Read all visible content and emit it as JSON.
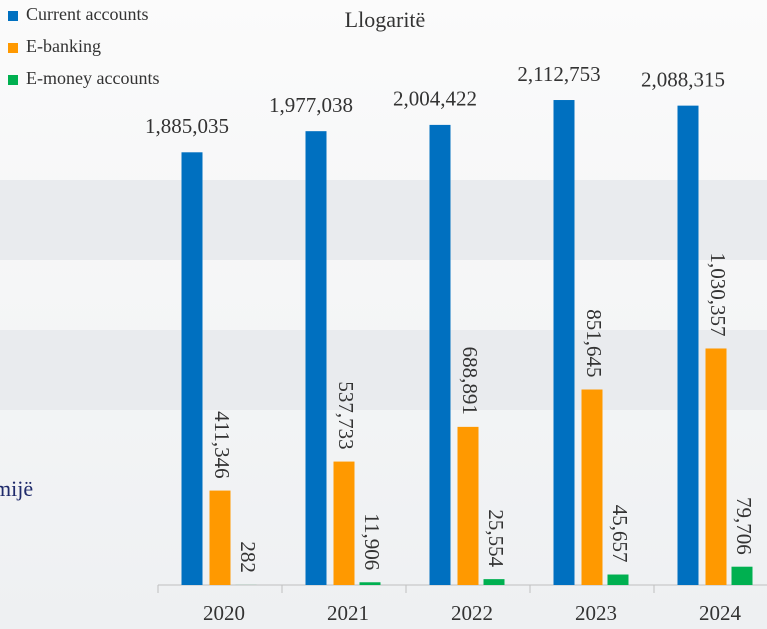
{
  "chart_data": {
    "type": "bar",
    "title": "Llogaritë",
    "annotation": "mijë",
    "categories": [
      "2020",
      "2021",
      "2022",
      "2023",
      "2024"
    ],
    "ylim": [
      0,
      2200000
    ],
    "series": [
      {
        "name": "Current accounts",
        "color": "#0070c0",
        "values": [
          1885035,
          1977038,
          2004422,
          2112753,
          2088315
        ],
        "value_labels": [
          "1,885,035",
          "1,977,038",
          "2,004,422",
          "2,112,753",
          "2,088,315"
        ]
      },
      {
        "name": "E-banking",
        "color": "#ff9900",
        "values": [
          411346,
          537733,
          688891,
          851645,
          1030357
        ],
        "value_labels": [
          "411,346",
          "537,733",
          "688,891",
          "851,645",
          "1,030,357"
        ]
      },
      {
        "name": "E-money accounts",
        "color": "#00b050",
        "values": [
          282,
          11906,
          25554,
          45657,
          79706
        ],
        "value_labels": [
          "282",
          "11,906",
          "25,554",
          "45,657",
          "79,706"
        ]
      }
    ],
    "legend": "top-left"
  }
}
